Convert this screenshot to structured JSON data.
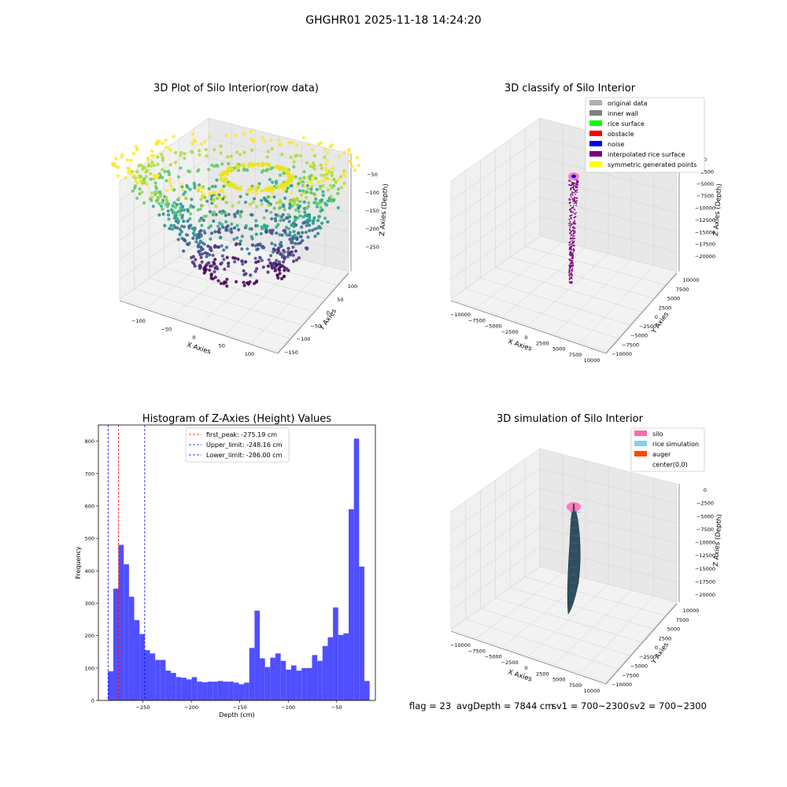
{
  "figure": {
    "suptitle": "GHGHR01 2025-11-18 14:24:20",
    "footer": {
      "flag": "flag = 23",
      "avg_depth": "avgDepth = 7844 cm",
      "sv1": "sv1 = 700~2300",
      "sv2": "sv2 = 700~2300"
    }
  },
  "colors": {
    "histogram_bar": "#4b4bff",
    "first_peak_line": "#ff0000",
    "limit_lines": "#0000ff",
    "pane_gray": "#f2f2f2"
  },
  "chart_data": [
    {
      "type": "scatter3d",
      "title": "3D Plot of Silo Interior(row data)",
      "xlabel": "X Axies",
      "ylabel": "Y Axies",
      "zlabel": "Z Axies (Depth)",
      "x_ticks": [
        "−100",
        "−50",
        "0",
        "50",
        "100"
      ],
      "y_ticks": [
        "−150",
        "−100",
        "−50",
        "0",
        "50",
        "100"
      ],
      "z_ticks": [
        "−50",
        "−100",
        "−150",
        "−200",
        "−250"
      ],
      "xlim": [
        -130,
        120
      ],
      "ylim": [
        -160,
        120
      ],
      "zlim": [
        -290,
        -20
      ],
      "colormap": "viridis"
    },
    {
      "type": "scatter3d",
      "title": "3D classify of Silo Interior",
      "xlabel": "X Axies",
      "ylabel": "Y Axies",
      "zlabel": "Z Axies (Depth)",
      "x_ticks": [
        "−10000",
        "−7500",
        "−5000",
        "−2500",
        "0",
        "2500",
        "5000",
        "7500",
        "10000"
      ],
      "y_ticks": [
        "−10000",
        "−7500",
        "−5000",
        "−2500",
        "0",
        "2500",
        "5000",
        "7500",
        "10000"
      ],
      "z_ticks": [
        "0",
        "−2500",
        "−5000",
        "−7500",
        "−10000",
        "−12500",
        "−15000",
        "−17500",
        "−20000"
      ],
      "legend_position": "top-right",
      "legend": [
        {
          "label": "original data",
          "color": "#b0b0b0"
        },
        {
          "label": "inner wall",
          "color": "#808080"
        },
        {
          "label": "rice surface",
          "color": "#00ff00"
        },
        {
          "label": "obstacle",
          "color": "#ff0000"
        },
        {
          "label": "noise",
          "color": "#0000ff"
        },
        {
          "label": "interpolated rice surface",
          "color": "#800080"
        },
        {
          "label": "symmetric generated points",
          "color": "#ffff00"
        }
      ]
    },
    {
      "type": "bar",
      "title": "Histogram of Z-Axies (Height) Values",
      "xlabel": "Depth (cm)",
      "ylabel": "Frequency",
      "xlim": [
        -296,
        -10
      ],
      "ylim": [
        0,
        850
      ],
      "x_ticks": [
        -250,
        -200,
        -150,
        -100,
        -50
      ],
      "x_tick_labels": [
        "−250",
        "−200",
        "−150",
        "−100",
        "−50"
      ],
      "y_ticks": [
        0,
        100,
        200,
        300,
        400,
        500,
        600,
        700,
        800
      ],
      "y_tick_labels": [
        "0",
        "100",
        "200",
        "300",
        "400",
        "500",
        "600",
        "700",
        "800"
      ],
      "bin_start": -286,
      "bin_width": 5.4,
      "values": [
        90,
        345,
        480,
        420,
        320,
        248,
        205,
        155,
        145,
        125,
        125,
        92,
        85,
        72,
        70,
        65,
        72,
        58,
        56,
        58,
        58,
        60,
        58,
        58,
        55,
        50,
        55,
        162,
        277,
        130,
        103,
        132,
        145,
        122,
        95,
        108,
        92,
        100,
        100,
        140,
        122,
        168,
        195,
        287,
        202,
        207,
        590,
        808,
        413,
        60
      ],
      "reference_lines": [
        {
          "label": "first_peak: -275.19 cm",
          "x": -275.19,
          "color": "#ff0000"
        },
        {
          "label": "Upper_limit: -248.16 cm",
          "x": -248.16,
          "color": "#0000ff"
        },
        {
          "label": "Lower_limit: -286.00 cm",
          "x": -286.0,
          "color": "#0000ff"
        }
      ]
    },
    {
      "type": "surface3d",
      "title": "3D simulation of Silo Interior",
      "xlabel": "X Axies",
      "ylabel": "Y Axies",
      "zlabel": "Z Axies (Depth)",
      "x_ticks": [
        "−10000",
        "−7500",
        "−5000",
        "−2500",
        "0",
        "2500",
        "5000",
        "7500",
        "10000"
      ],
      "y_ticks": [
        "−10000",
        "−7500",
        "−5000",
        "−2500",
        "0",
        "2500",
        "5000",
        "7500",
        "10000"
      ],
      "z_ticks": [
        "0",
        "−2500",
        "−5000",
        "−7500",
        "−10000",
        "−12500",
        "−15000",
        "−17500",
        "−20000"
      ],
      "legend_position": "top-right",
      "legend": [
        {
          "label": "silo",
          "color": "#ff69b4"
        },
        {
          "label": "rice simulation",
          "color": "#87ceeb"
        },
        {
          "label": "auger",
          "color": "#ff4500"
        },
        {
          "label": "center(0,0)",
          "color": ""
        }
      ]
    }
  ]
}
